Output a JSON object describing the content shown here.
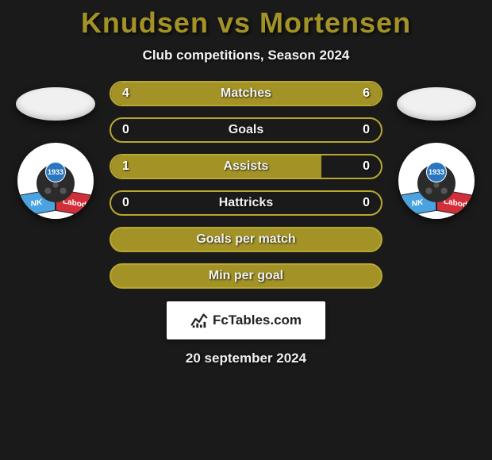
{
  "title": {
    "prefix": "Knudsen",
    "connector": "vs",
    "suffix": "Mortensen",
    "prefix_color": "#a39327",
    "connector_color": "#a39327",
    "suffix_color": "#a39327"
  },
  "subtitle": "Club competitions, Season 2024",
  "left_player": {
    "flag_bg": "#f0f0f0",
    "club": {
      "name_left": "NK",
      "name_right": "Labod",
      "year": "1933",
      "ribbon_left_color": "#4aa3e0",
      "ribbon_right_color": "#d22f3a"
    }
  },
  "right_player": {
    "flag_bg": "#f0f0f0",
    "club": {
      "name_left": "NK",
      "name_right": "Labod",
      "year": "1933",
      "ribbon_left_color": "#4aa3e0",
      "ribbon_right_color": "#d22f3a"
    }
  },
  "bar_color_left": "#a39327",
  "bar_color_right": "#a39327",
  "bar_border_color": "#b8a730",
  "bar_track_color": "#1a1a1a",
  "stats": [
    {
      "label": "Matches",
      "left_value": "4",
      "right_value": "6",
      "left_pct": 40,
      "right_pct": 60
    },
    {
      "label": "Goals",
      "left_value": "0",
      "right_value": "0",
      "left_pct": 0,
      "right_pct": 0,
      "empty_border": true
    },
    {
      "label": "Assists",
      "left_value": "1",
      "right_value": "0",
      "left_pct": 78,
      "right_pct": 0
    },
    {
      "label": "Hattricks",
      "left_value": "0",
      "right_value": "0",
      "left_pct": 0,
      "right_pct": 0,
      "empty_border": true
    },
    {
      "label": "Goals per match",
      "left_value": "",
      "right_value": "",
      "left_pct": 100,
      "right_pct": 0,
      "full_fill": true
    },
    {
      "label": "Min per goal",
      "left_value": "",
      "right_value": "",
      "left_pct": 100,
      "right_pct": 0,
      "full_fill": true
    }
  ],
  "branding": {
    "text": "FcTables.com",
    "icon_color": "#222"
  },
  "date": "20 september 2024",
  "background_color": "#1a1a1a",
  "text_shadow": "1px 1px 3px rgba(0,0,0,0.8)"
}
